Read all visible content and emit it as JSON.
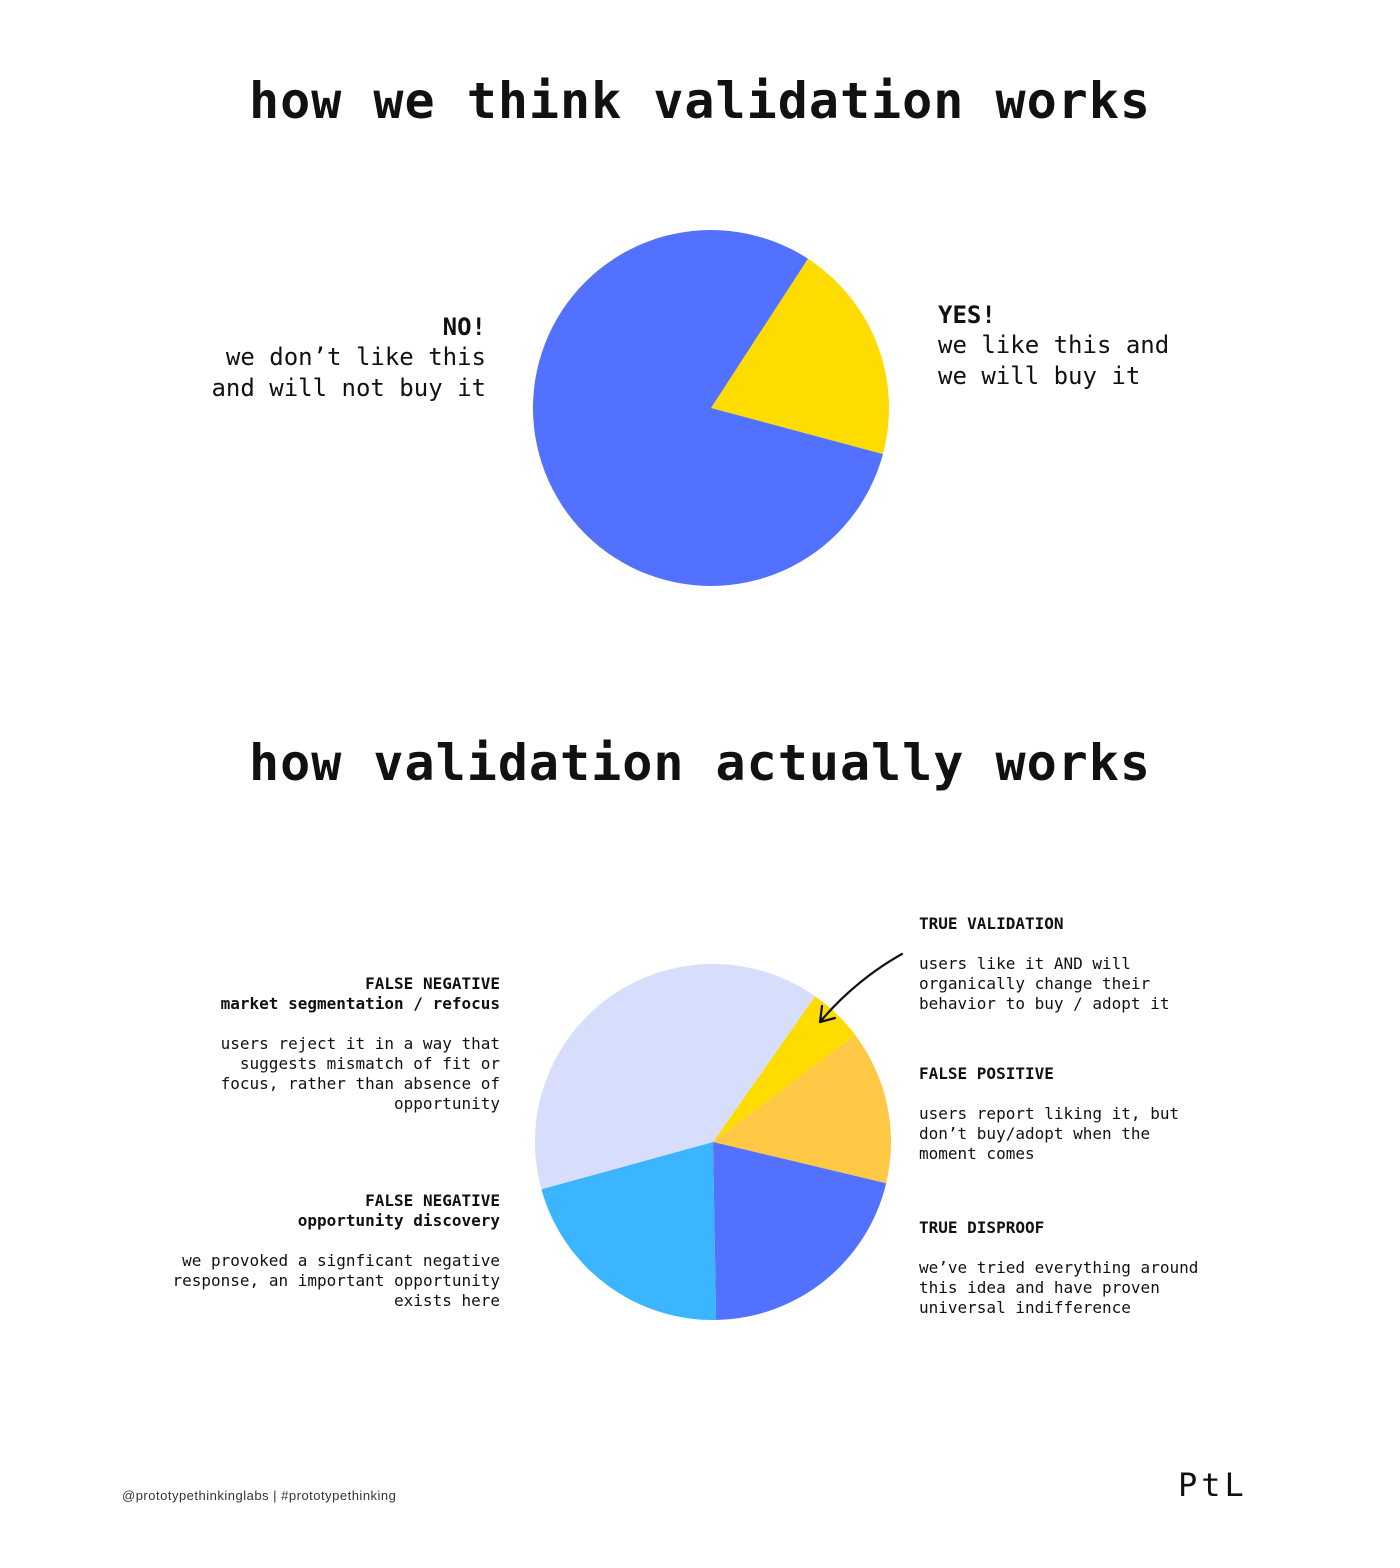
{
  "chart_data": [
    {
      "type": "pie",
      "title": "how we think validation works",
      "slices": [
        {
          "label": "YES!",
          "value": 20,
          "color": "#FFDC00"
        },
        {
          "label": "NO!",
          "value": 80,
          "color": "#5271FF"
        }
      ],
      "annotations": {
        "no_head": "NO!",
        "no_body": "we don’t like this\nand will not buy it",
        "yes_head": "YES!",
        "yes_body": "we like this and\nwe will buy it"
      }
    },
    {
      "type": "pie",
      "title": "how validation actually works",
      "slices": [
        {
          "label": "TRUE VALIDATION",
          "value": 5,
          "color": "#FFDC00"
        },
        {
          "label": "FALSE POSITIVE",
          "value": 14,
          "color": "#FFC845"
        },
        {
          "label": "TRUE DISPROOF",
          "value": 21,
          "color": "#5271FF"
        },
        {
          "label": "FALSE NEGATIVE opportunity discovery",
          "value": 21,
          "color": "#3BB5FF"
        },
        {
          "label": "FALSE NEGATIVE market segmentation / refocus",
          "value": 39,
          "color": "#D6DEFC"
        }
      ],
      "annotations": {
        "fn_market_head": "FALSE NEGATIVE\nmarket segmentation / refocus",
        "fn_market_body": "users reject it in a way that\nsuggests mismatch of fit or\nfocus, rather than absence of\nopportunity",
        "fn_opportunity_head": "FALSE NEGATIVE\nopportunity discovery",
        "fn_opportunity_body": "we provoked a signficant negative\nresponse, an important opportunity\nexists here",
        "true_validation_head": "TRUE VALIDATION",
        "true_validation_body": "users like it AND will\norganically change their\nbehavior to buy / adopt it",
        "false_positive_head": "FALSE POSITIVE",
        "false_positive_body": "users report liking it, but\ndon’t buy/adopt when the\nmoment comes",
        "true_disproof_head": "TRUE DISPROOF",
        "true_disproof_body": "we’ve tried everything around\nthis idea and have proven\nuniversal indifference"
      }
    }
  ],
  "footer": {
    "text": "@prototypethinkinglabs   |   #prototypethinking",
    "logo": "PtL"
  }
}
